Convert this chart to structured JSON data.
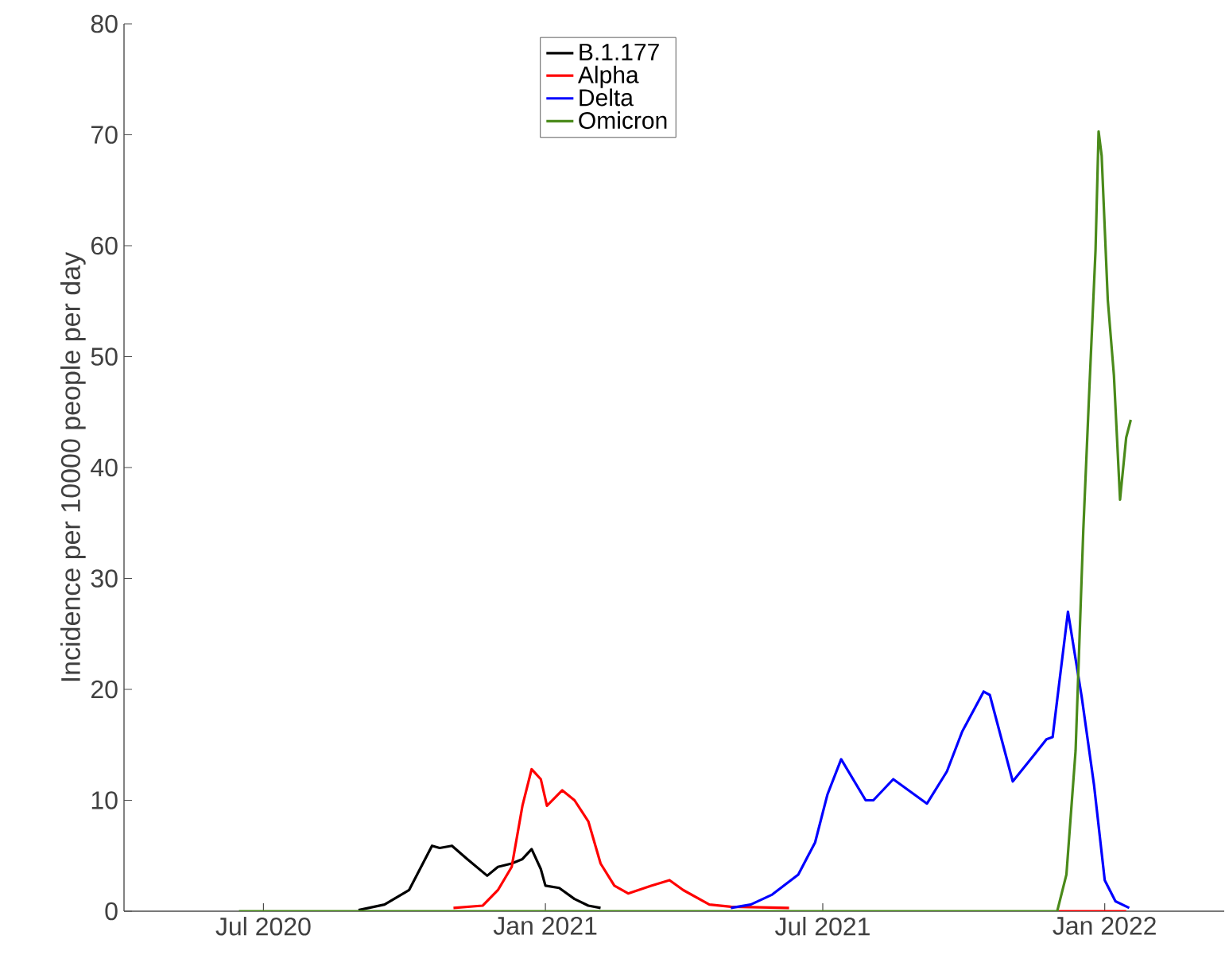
{
  "chart_data": {
    "type": "line",
    "ylabel": "Incidence per 10000 people per day",
    "xlim": [
      "2020-04-01",
      "2022-03-20"
    ],
    "ylim": [
      0,
      80
    ],
    "xticks": [
      {
        "value": "2020-07-01",
        "label": "Jul 2020"
      },
      {
        "value": "2021-01-01",
        "label": "Jan 2021"
      },
      {
        "value": "2021-07-01",
        "label": "Jul 2021"
      },
      {
        "value": "2022-01-01",
        "label": "Jan 2022"
      }
    ],
    "yticks": [
      0,
      10,
      20,
      30,
      40,
      50,
      60,
      70,
      80
    ],
    "grid": false,
    "legend": "top",
    "marker": "none",
    "line_style": "solid",
    "series": [
      {
        "name": "B.1.177",
        "color": "#000000",
        "x": [
          "2020-09-01",
          "2020-09-18",
          "2020-10-04",
          "2020-10-19",
          "2020-10-24",
          "2020-11-01",
          "2020-11-11",
          "2020-11-24",
          "2020-12-01",
          "2020-12-10",
          "2020-12-17",
          "2020-12-23",
          "2020-12-29",
          "2021-01-01",
          "2021-01-10",
          "2021-01-20",
          "2021-01-29",
          "2021-02-06"
        ],
        "values": [
          0.1,
          0.6,
          1.9,
          5.9,
          5.7,
          5.9,
          4.7,
          3.2,
          4.0,
          4.3,
          4.7,
          5.6,
          3.8,
          2.3,
          2.1,
          1.1,
          0.5,
          0.3
        ]
      },
      {
        "name": "Alpha",
        "color": "#ff0000",
        "x": [
          "2020-11-02",
          "2020-11-21",
          "2020-12-01",
          "2020-12-10",
          "2020-12-17",
          "2020-12-23",
          "2020-12-29",
          "2021-01-02",
          "2021-01-12",
          "2021-01-20",
          "2021-01-29",
          "2021-02-06",
          "2021-02-15",
          "2021-02-24",
          "2021-03-11",
          "2021-03-23",
          "2021-04-01",
          "2021-04-18",
          "2021-05-02",
          "2021-06-09",
          "2021-09-01",
          "2021-12-02",
          "2022-01-15"
        ],
        "values": [
          0.3,
          0.5,
          1.9,
          4.0,
          9.5,
          12.8,
          11.9,
          9.5,
          10.9,
          10.0,
          8.1,
          4.3,
          2.3,
          1.6,
          2.3,
          2.8,
          1.9,
          0.6,
          0.4,
          0.3,
          null,
          0,
          0
        ]
      },
      {
        "name": "Delta",
        "color": "#0000ff",
        "x": [
          "2021-05-02",
          "2021-05-15",
          "2021-05-29",
          "2021-06-15",
          "2021-06-26",
          "2021-07-04",
          "2021-07-13",
          "2021-07-29",
          "2021-08-03",
          "2021-08-16",
          "2021-09-07",
          "2021-09-20",
          "2021-09-30",
          "2021-10-14",
          "2021-10-18",
          "2021-11-02",
          "2021-11-16",
          "2021-11-24",
          "2021-11-28",
          "2021-12-08",
          "2021-12-17",
          "2021-12-25",
          "2022-01-01",
          "2022-01-08",
          "2022-01-17"
        ],
        "values": [
          0.3,
          0.6,
          1.5,
          3.3,
          6.2,
          10.5,
          13.7,
          10.0,
          10.0,
          11.9,
          9.7,
          12.6,
          16.2,
          19.8,
          19.5,
          11.7,
          14.1,
          15.5,
          15.7,
          27.0,
          19.3,
          11.4,
          2.8,
          0.9,
          0.3
        ]
      },
      {
        "name": "Omicron",
        "color": "#4a8a1a",
        "x": [
          "2020-06-15",
          "2021-12-01",
          "2021-12-07",
          "2021-12-13",
          "2021-12-18",
          "2021-12-22",
          "2021-12-26",
          "2021-12-28",
          "2021-12-30",
          "2022-01-03",
          "2022-01-07",
          "2022-01-11",
          "2022-01-15",
          "2022-01-18"
        ],
        "values": [
          0,
          0,
          3.3,
          14.5,
          34.3,
          47.2,
          59.6,
          70.3,
          68.1,
          55.1,
          48.3,
          37.1,
          42.7,
          44.3
        ]
      }
    ]
  }
}
